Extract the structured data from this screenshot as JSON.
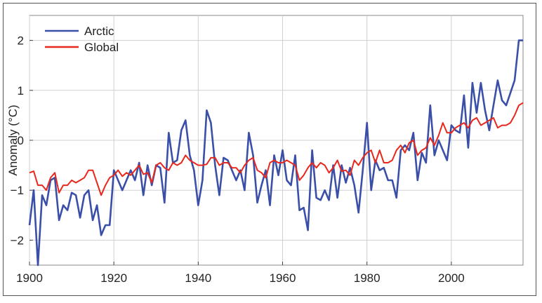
{
  "chart_data": {
    "type": "line",
    "title": "",
    "xlabel": "",
    "ylabel": "Anomaly (°C)",
    "xlim": [
      1900,
      2017
    ],
    "ylim": [
      -2.5,
      2.5
    ],
    "xticks": [
      1900,
      1920,
      1940,
      1960,
      1980,
      2000
    ],
    "yticks": [
      -2,
      -1,
      0,
      1,
      2
    ],
    "ytick_labels": [
      "−2",
      "−1",
      "0",
      "1",
      "2"
    ],
    "xtick_labels": [
      "1900",
      "1920",
      "1940",
      "1960",
      "1980",
      "2000"
    ],
    "grid": true,
    "legend_position": "top-left",
    "series": [
      {
        "name": "Arctic",
        "color": "#3a4fa8",
        "x": [
          1900,
          1901,
          1902,
          1903,
          1904,
          1905,
          1906,
          1907,
          1908,
          1909,
          1910,
          1911,
          1912,
          1913,
          1914,
          1915,
          1916,
          1917,
          1918,
          1919,
          1920,
          1921,
          1922,
          1923,
          1924,
          1925,
          1926,
          1927,
          1928,
          1929,
          1930,
          1931,
          1932,
          1933,
          1934,
          1935,
          1936,
          1937,
          1938,
          1939,
          1940,
          1941,
          1942,
          1943,
          1944,
          1945,
          1946,
          1947,
          1948,
          1949,
          1950,
          1951,
          1952,
          1953,
          1954,
          1955,
          1956,
          1957,
          1958,
          1959,
          1960,
          1961,
          1962,
          1963,
          1964,
          1965,
          1966,
          1967,
          1968,
          1969,
          1970,
          1971,
          1972,
          1973,
          1974,
          1975,
          1976,
          1977,
          1978,
          1979,
          1980,
          1981,
          1982,
          1983,
          1984,
          1985,
          1986,
          1987,
          1988,
          1989,
          1990,
          1991,
          1992,
          1993,
          1994,
          1995,
          1996,
          1997,
          1998,
          1999,
          2000,
          2001,
          2002,
          2003,
          2004,
          2005,
          2006,
          2007,
          2008,
          2009,
          2010,
          2011,
          2012,
          2013,
          2014,
          2015,
          2016,
          2017
        ],
        "values": [
          -1.7,
          -1.0,
          -2.5,
          -1.1,
          -1.3,
          -0.8,
          -0.75,
          -1.6,
          -1.3,
          -1.4,
          -1.05,
          -1.1,
          -1.55,
          -1.1,
          -1.0,
          -1.6,
          -1.3,
          -1.9,
          -1.7,
          -1.7,
          -0.6,
          -0.8,
          -1.0,
          -0.8,
          -0.6,
          -0.8,
          -0.45,
          -1.1,
          -0.5,
          -0.9,
          -0.5,
          -0.55,
          -1.25,
          0.15,
          -0.45,
          -0.4,
          0.2,
          0.4,
          -0.3,
          -0.6,
          -1.3,
          -0.8,
          0.6,
          0.35,
          -0.5,
          -1.1,
          -0.35,
          -0.4,
          -0.6,
          -0.8,
          -0.6,
          -1.0,
          0.15,
          -0.3,
          -1.25,
          -0.9,
          -0.6,
          -1.3,
          -0.3,
          -0.7,
          -0.2,
          -0.8,
          -0.9,
          -0.3,
          -1.4,
          -1.35,
          -1.8,
          -0.2,
          -1.15,
          -1.2,
          -1.0,
          -1.2,
          -0.5,
          -1.15,
          -0.5,
          -0.85,
          -0.55,
          -0.9,
          -1.45,
          -0.6,
          0.35,
          -1.0,
          -0.4,
          -0.6,
          -0.55,
          -0.8,
          -0.8,
          -1.15,
          -0.2,
          -0.1,
          -0.2,
          0.15,
          -0.8,
          -0.25,
          -0.45,
          0.7,
          -0.3,
          0.0,
          -0.2,
          -0.4,
          0.3,
          0.2,
          0.15,
          0.9,
          -0.15,
          1.15,
          0.55,
          1.15,
          0.6,
          0.2,
          0.7,
          1.2,
          0.8,
          0.7,
          0.95,
          1.2,
          2.0,
          2.0
        ]
      },
      {
        "name": "Global",
        "color": "#e8281c",
        "x": [
          1900,
          1901,
          1902,
          1903,
          1904,
          1905,
          1906,
          1907,
          1908,
          1909,
          1910,
          1911,
          1912,
          1913,
          1914,
          1915,
          1916,
          1917,
          1918,
          1919,
          1920,
          1921,
          1922,
          1923,
          1924,
          1925,
          1926,
          1927,
          1928,
          1929,
          1930,
          1931,
          1932,
          1933,
          1934,
          1935,
          1936,
          1937,
          1938,
          1939,
          1940,
          1941,
          1942,
          1943,
          1944,
          1945,
          1946,
          1947,
          1948,
          1949,
          1950,
          1951,
          1952,
          1953,
          1954,
          1955,
          1956,
          1957,
          1958,
          1959,
          1960,
          1961,
          1962,
          1963,
          1964,
          1965,
          1966,
          1967,
          1968,
          1969,
          1970,
          1971,
          1972,
          1973,
          1974,
          1975,
          1976,
          1977,
          1978,
          1979,
          1980,
          1981,
          1982,
          1983,
          1984,
          1985,
          1986,
          1987,
          1988,
          1989,
          1990,
          1991,
          1992,
          1993,
          1994,
          1995,
          1996,
          1997,
          1998,
          1999,
          2000,
          2001,
          2002,
          2003,
          2004,
          2005,
          2006,
          2007,
          2008,
          2009,
          2010,
          2011,
          2012,
          2013,
          2014,
          2015,
          2016,
          2017
        ],
        "values": [
          -0.65,
          -0.62,
          -0.9,
          -0.9,
          -1.0,
          -0.75,
          -0.65,
          -1.05,
          -0.9,
          -0.9,
          -0.8,
          -0.85,
          -0.8,
          -0.75,
          -0.6,
          -0.6,
          -0.85,
          -1.1,
          -0.9,
          -0.75,
          -0.7,
          -0.6,
          -0.72,
          -0.65,
          -0.7,
          -0.6,
          -0.5,
          -0.68,
          -0.65,
          -0.85,
          -0.5,
          -0.45,
          -0.55,
          -0.6,
          -0.45,
          -0.5,
          -0.45,
          -0.3,
          -0.4,
          -0.45,
          -0.5,
          -0.5,
          -0.48,
          -0.35,
          -0.35,
          -0.5,
          -0.45,
          -0.45,
          -0.55,
          -0.55,
          -0.65,
          -0.5,
          -0.4,
          -0.35,
          -0.6,
          -0.65,
          -0.75,
          -0.45,
          -0.4,
          -0.45,
          -0.45,
          -0.4,
          -0.45,
          -0.5,
          -0.8,
          -0.7,
          -0.55,
          -0.45,
          -0.55,
          -0.45,
          -0.5,
          -0.65,
          -0.55,
          -0.4,
          -0.62,
          -0.6,
          -0.7,
          -0.4,
          -0.5,
          -0.35,
          -0.25,
          -0.2,
          -0.45,
          -0.2,
          -0.45,
          -0.45,
          -0.4,
          -0.2,
          -0.1,
          -0.25,
          -0.05,
          0.0,
          -0.3,
          -0.2,
          -0.15,
          0.05,
          -0.1,
          0.1,
          0.35,
          0.15,
          0.15,
          0.25,
          0.3,
          0.35,
          0.25,
          0.4,
          0.45,
          0.3,
          0.35,
          0.4,
          0.45,
          0.25,
          0.3,
          0.3,
          0.35,
          0.5,
          0.7,
          0.75
        ]
      }
    ]
  }
}
